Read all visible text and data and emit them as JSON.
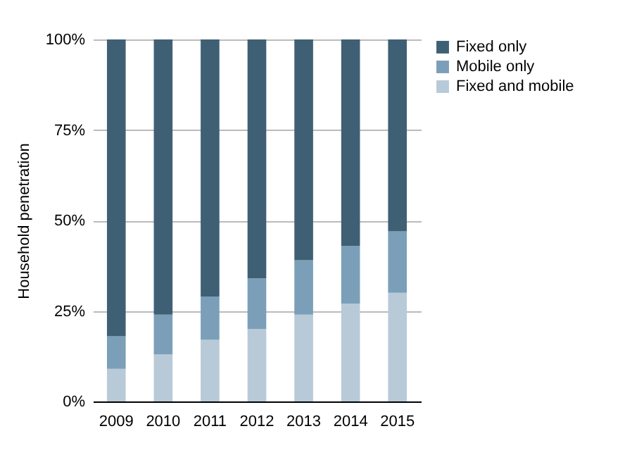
{
  "chart_data": {
    "type": "bar",
    "stacked": true,
    "ylabel": "Household penetration",
    "categories": [
      "2009",
      "2010",
      "2011",
      "2012",
      "2013",
      "2014",
      "2015"
    ],
    "series": [
      {
        "name": "Fixed and mobile",
        "color": "#b8cad8",
        "values": [
          9,
          13,
          17,
          20,
          24,
          27,
          30
        ]
      },
      {
        "name": "Mobile only",
        "color": "#7b9fb8",
        "values": [
          9,
          11,
          12,
          14,
          15,
          16,
          17
        ]
      },
      {
        "name": "Fixed only",
        "color": "#3f6074",
        "values": [
          82,
          76,
          71,
          66,
          61,
          57,
          53
        ]
      }
    ],
    "ylim": [
      0,
      100
    ],
    "yticks": [
      {
        "value": 0,
        "label": "0%"
      },
      {
        "value": 25,
        "label": "25%"
      },
      {
        "value": 50,
        "label": "50%"
      },
      {
        "value": 75,
        "label": "75%"
      },
      {
        "value": 100,
        "label": "100%"
      }
    ],
    "grid": "y",
    "legend": "right"
  }
}
